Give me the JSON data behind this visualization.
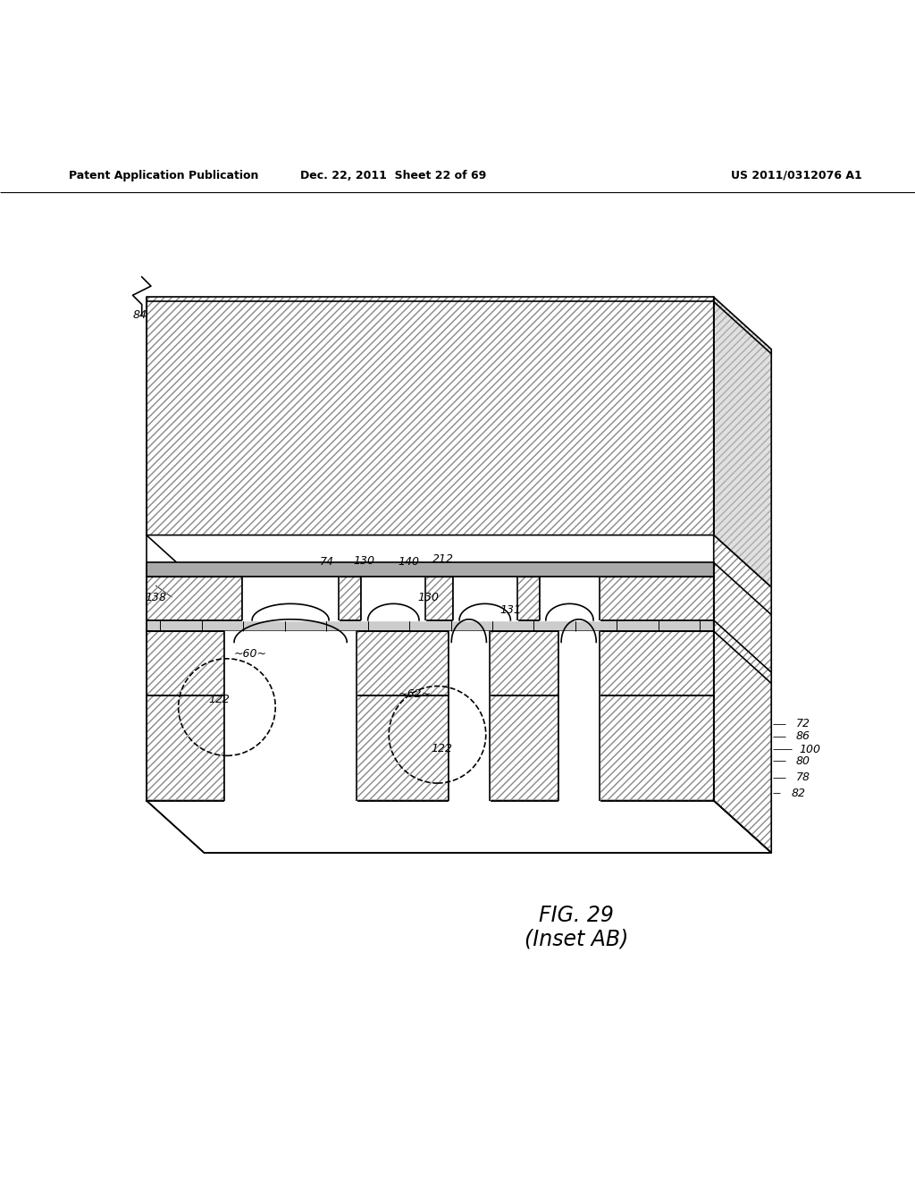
{
  "background_color": "#ffffff",
  "header_left": "Patent Application Publication",
  "header_mid": "Dec. 22, 2011  Sheet 22 of 69",
  "header_right": "US 2011/0312076 A1",
  "figure_label": "FIG. 29",
  "figure_sublabel": "(Inset AB)",
  "line_color": "#000000",
  "lw": 1.2,
  "thin_lw": 0.8
}
